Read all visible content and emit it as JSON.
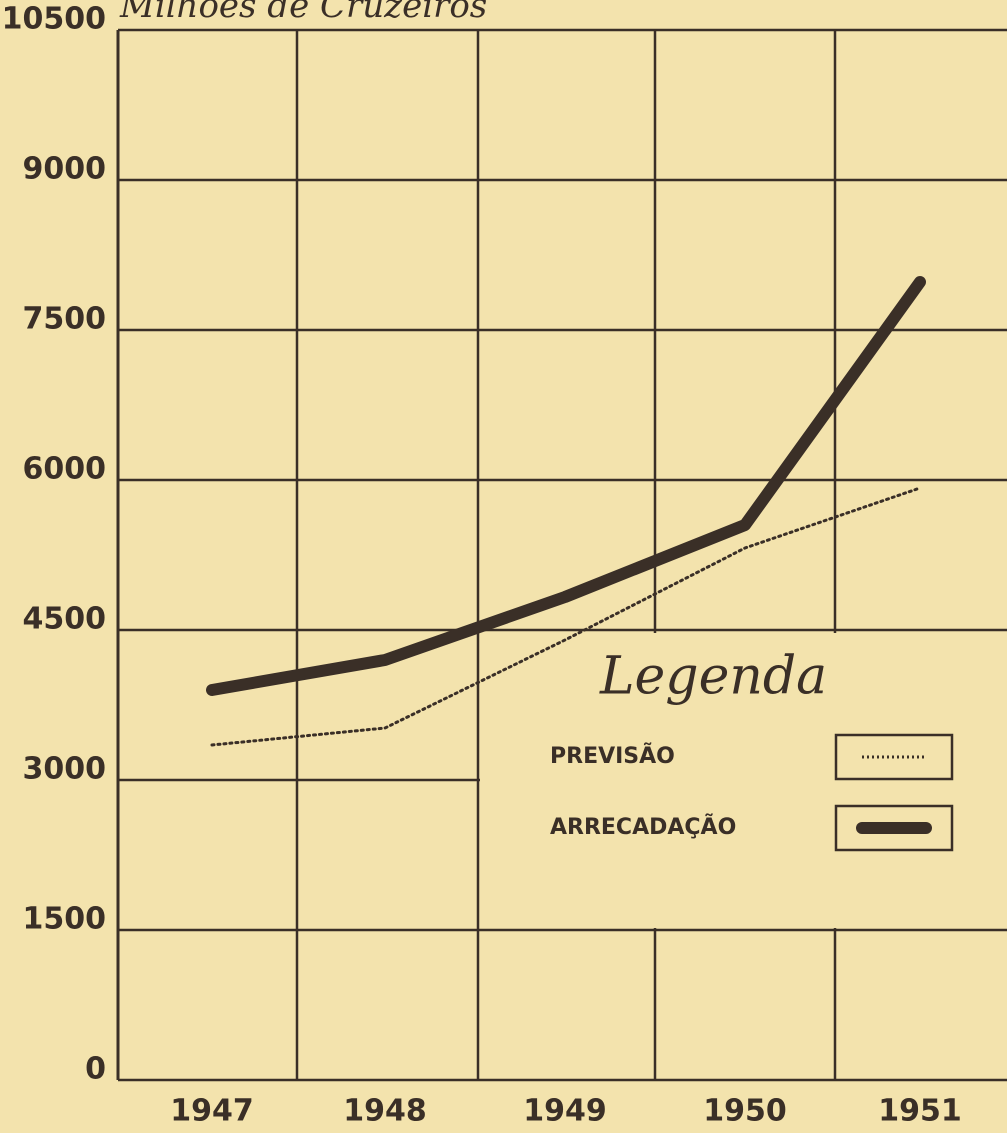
{
  "chart_data": {
    "type": "line",
    "y_label": "Milhões de Cruzeiros",
    "legend_title": "Legenda",
    "categories": [
      "1947",
      "1948",
      "1949",
      "1950",
      "1951"
    ],
    "series": [
      {
        "name": "PREVISÃO",
        "color": "#3a2f27",
        "style": "dotted",
        "values": [
          3350,
          3520,
          4400,
          5320,
          5920
        ]
      },
      {
        "name": "ARRECADAÇÃO",
        "color": "#3a2f27",
        "style": "solid",
        "values": [
          3900,
          4200,
          4830,
          5550,
          7980
        ]
      }
    ],
    "ylim": [
      0,
      10500
    ],
    "yticks": [
      0,
      1500,
      3000,
      4500,
      6000,
      7500,
      9000,
      10500
    ],
    "grid": true,
    "legend": "lower right"
  }
}
